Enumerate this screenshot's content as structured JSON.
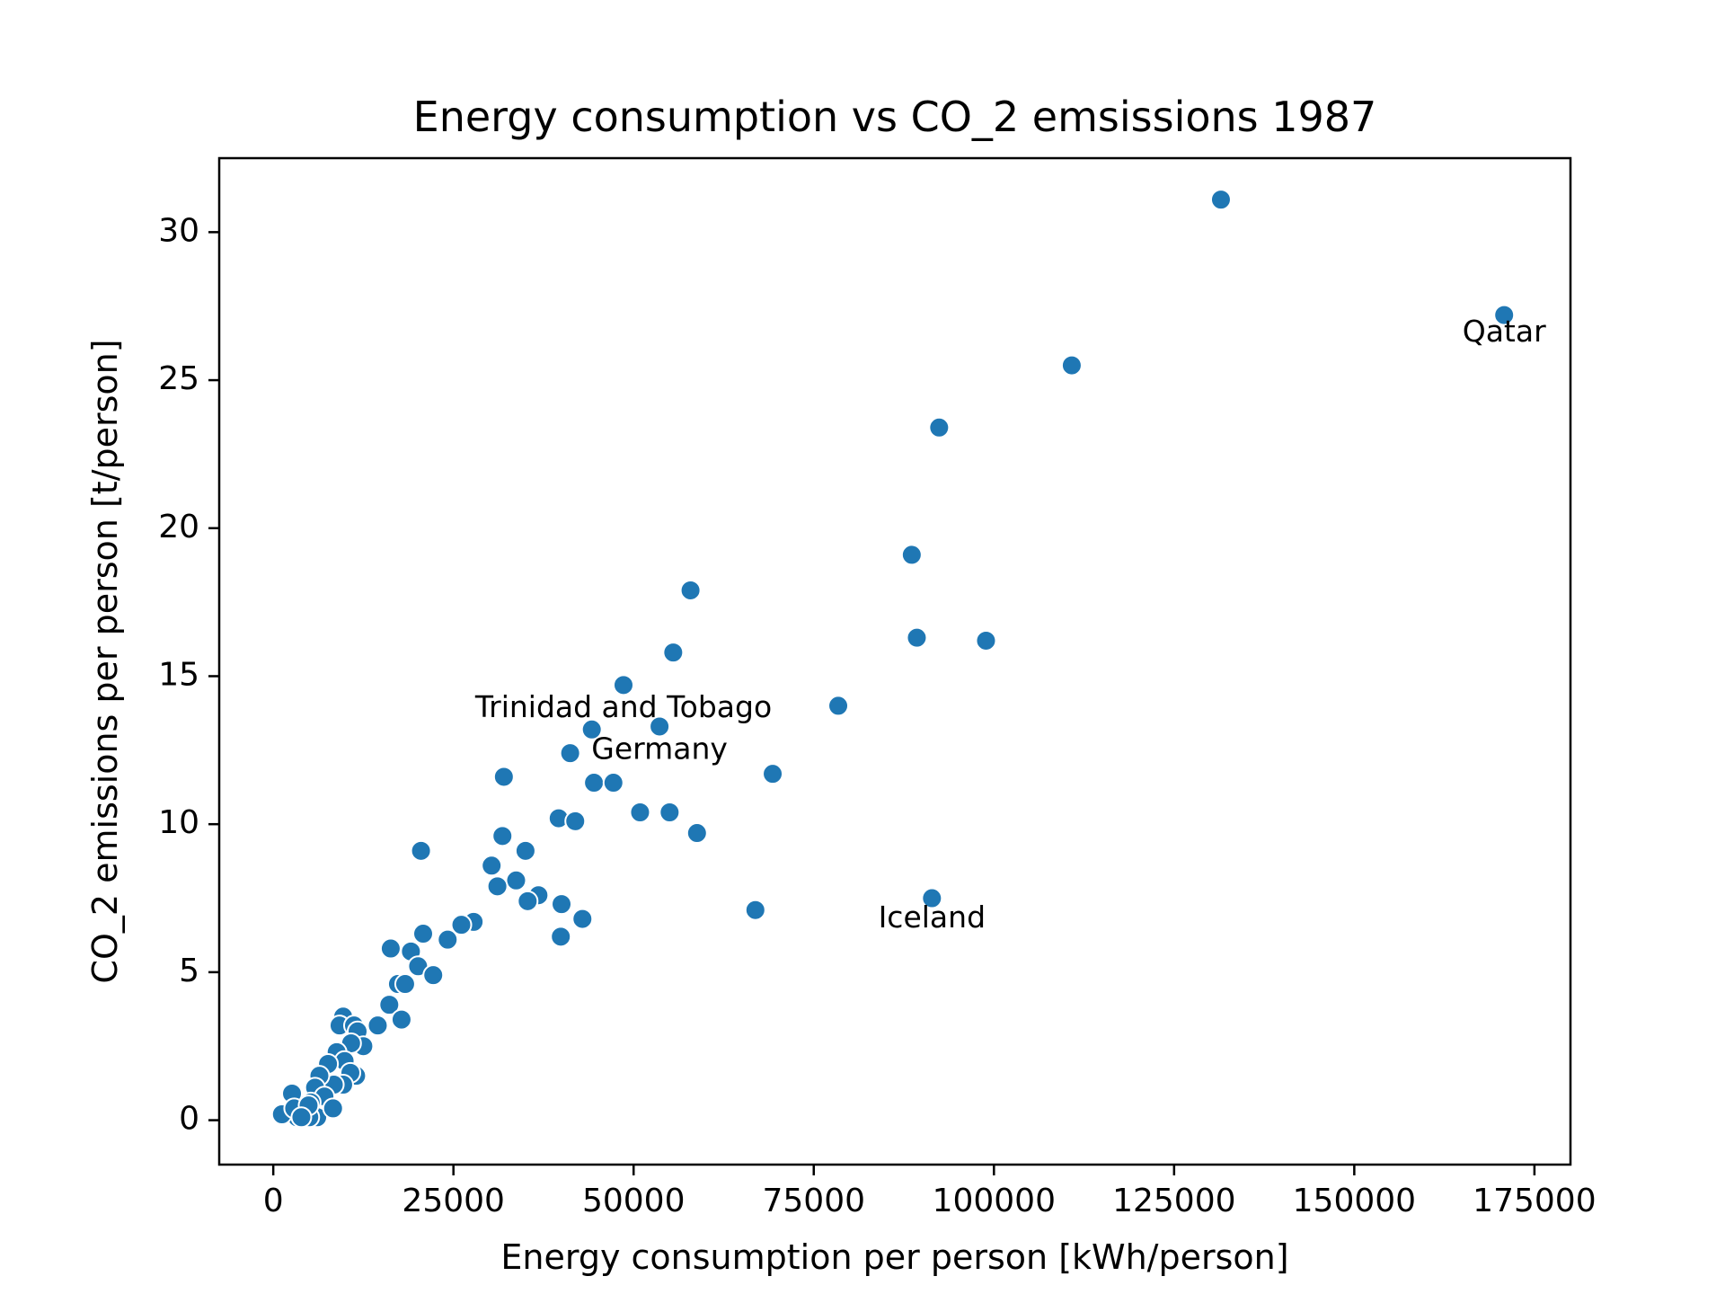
{
  "chart_data": {
    "type": "scatter",
    "title": "Energy consumption vs CO_2 emsissions 1987",
    "xlabel": "Energy consumption per person [kWh/person]",
    "ylabel": "CO_2 emissions per person [t/person]",
    "xlim": [
      -7500,
      180000
    ],
    "ylim": [
      -1.5,
      32.5
    ],
    "xticks": [
      0,
      25000,
      50000,
      75000,
      100000,
      125000,
      150000,
      175000
    ],
    "xtick_labels": [
      "0",
      "25000",
      "50000",
      "75000",
      "100000",
      "125000",
      "150000",
      "175000"
    ],
    "yticks": [
      0,
      5,
      10,
      15,
      20,
      25,
      30
    ],
    "ytick_labels": [
      "0",
      "5",
      "10",
      "15",
      "20",
      "25",
      "30"
    ],
    "grid": false,
    "legend": "none",
    "color": "#1f77b4",
    "points": [
      [
        131500,
        31.1
      ],
      [
        170800,
        27.2
      ],
      [
        110800,
        25.5
      ],
      [
        92400,
        23.4
      ],
      [
        88600,
        19.1
      ],
      [
        89300,
        16.3
      ],
      [
        98900,
        16.2
      ],
      [
        57900,
        17.9
      ],
      [
        55500,
        15.8
      ],
      [
        48600,
        14.7
      ],
      [
        78400,
        14.0
      ],
      [
        44200,
        13.2
      ],
      [
        53600,
        13.3
      ],
      [
        41200,
        12.4
      ],
      [
        69300,
        11.7
      ],
      [
        32000,
        11.6
      ],
      [
        44500,
        11.4
      ],
      [
        47200,
        11.4
      ],
      [
        50900,
        10.4
      ],
      [
        55000,
        10.4
      ],
      [
        39600,
        10.2
      ],
      [
        41900,
        10.1
      ],
      [
        58800,
        9.7
      ],
      [
        31800,
        9.6
      ],
      [
        20500,
        9.1
      ],
      [
        35000,
        9.1
      ],
      [
        30300,
        8.6
      ],
      [
        33700,
        8.1
      ],
      [
        31100,
        7.9
      ],
      [
        36800,
        7.6
      ],
      [
        35300,
        7.4
      ],
      [
        40000,
        7.3
      ],
      [
        91400,
        7.5
      ],
      [
        66900,
        7.1
      ],
      [
        42900,
        6.8
      ],
      [
        27800,
        6.7
      ],
      [
        26100,
        6.6
      ],
      [
        20800,
        6.3
      ],
      [
        24200,
        6.1
      ],
      [
        39900,
        6.2
      ],
      [
        16300,
        5.8
      ],
      [
        19100,
        5.7
      ],
      [
        20100,
        5.2
      ],
      [
        22200,
        4.9
      ],
      [
        17300,
        4.6
      ],
      [
        18300,
        4.6
      ],
      [
        16100,
        3.9
      ],
      [
        17800,
        3.4
      ],
      [
        14500,
        3.2
      ],
      [
        9700,
        3.5
      ],
      [
        9200,
        3.2
      ],
      [
        11200,
        3.2
      ],
      [
        11700,
        3.0
      ],
      [
        12500,
        2.5
      ],
      [
        10800,
        2.6
      ],
      [
        8800,
        2.3
      ],
      [
        9900,
        2.0
      ],
      [
        7600,
        1.9
      ],
      [
        11500,
        1.5
      ],
      [
        10700,
        1.6
      ],
      [
        9700,
        1.2
      ],
      [
        8400,
        1.2
      ],
      [
        6400,
        1.5
      ],
      [
        5800,
        1.1
      ],
      [
        7100,
        0.8
      ],
      [
        5200,
        0.6
      ],
      [
        6100,
        0.1
      ],
      [
        8300,
        0.4
      ],
      [
        4100,
        0.5
      ],
      [
        3700,
        0.3
      ],
      [
        4500,
        0.2
      ],
      [
        3300,
        0.1
      ],
      [
        2600,
        0.9
      ],
      [
        1200,
        0.2
      ],
      [
        5000,
        0.1
      ],
      [
        2900,
        0.4
      ],
      [
        4900,
        0.5
      ],
      [
        3900,
        0.1
      ]
    ],
    "annotations": [
      {
        "text": "Qatar",
        "x": 170800,
        "y": 26.6
      },
      {
        "text": "Trinidad and Tobago",
        "x": 48600,
        "y": 13.9
      },
      {
        "text": "Germany",
        "x": 53600,
        "y": 12.5
      },
      {
        "text": "Iceland",
        "x": 91400,
        "y": 6.8
      }
    ]
  }
}
